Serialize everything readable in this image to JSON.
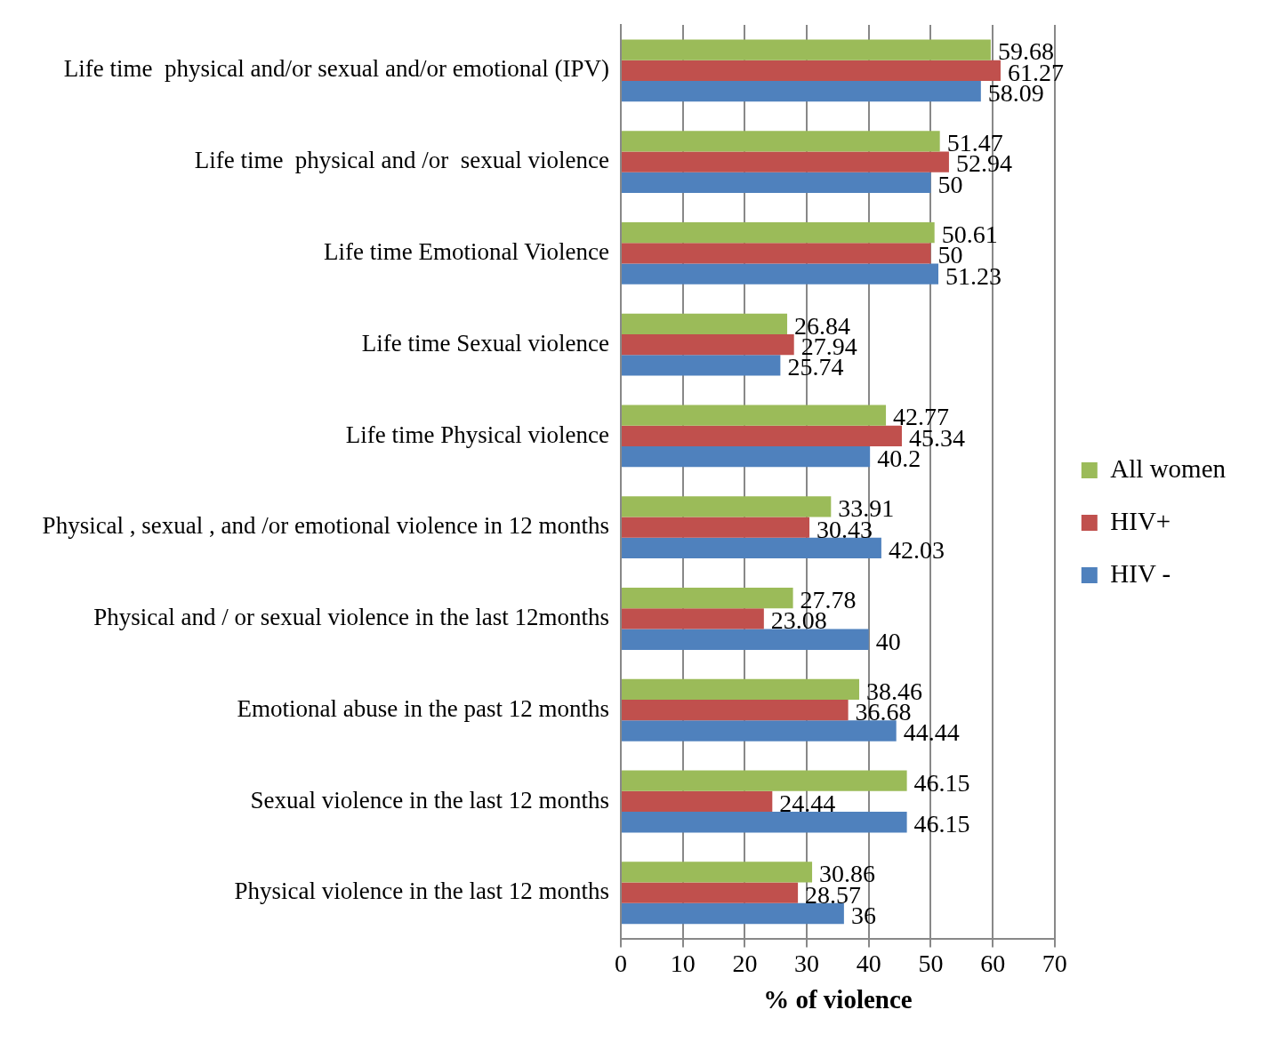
{
  "chart_data": {
    "type": "bar",
    "orientation": "horizontal",
    "xlabel": "% of violence",
    "categories": [
      "Life time  physical and/or sexual and/or emotional (IPV)",
      "Life time  physical and /or  sexual violence",
      "Life time Emotional Violence",
      "Life time Sexual violence",
      "Life time Physical violence",
      "Physical , sexual , and /or emotional violence in 12 months",
      "Physical and / or sexual violence in the last 12months",
      "Emotional abuse in the past 12 months",
      "Sexual violence in the last 12 months",
      "Physical violence in the last 12 months"
    ],
    "series": [
      {
        "name": "All women",
        "color": "#9bbb59",
        "values": [
          59.68,
          51.47,
          50.61,
          26.84,
          42.77,
          33.91,
          27.78,
          38.46,
          46.15,
          30.86
        ]
      },
      {
        "name": "HIV+",
        "color": "#c0504d",
        "values": [
          61.27,
          52.94,
          50,
          27.94,
          45.34,
          30.43,
          23.08,
          36.68,
          24.44,
          28.57
        ]
      },
      {
        "name": "HIV -",
        "color": "#4f81bd",
        "values": [
          58.09,
          50,
          51.23,
          25.74,
          40.2,
          42.03,
          40,
          44.44,
          46.15,
          36
        ]
      }
    ],
    "xlim": [
      0,
      70
    ],
    "xticks": [
      0,
      10,
      20,
      30,
      40,
      50,
      60,
      70
    ],
    "grid": "x",
    "legend": "right",
    "data_labels": true
  }
}
